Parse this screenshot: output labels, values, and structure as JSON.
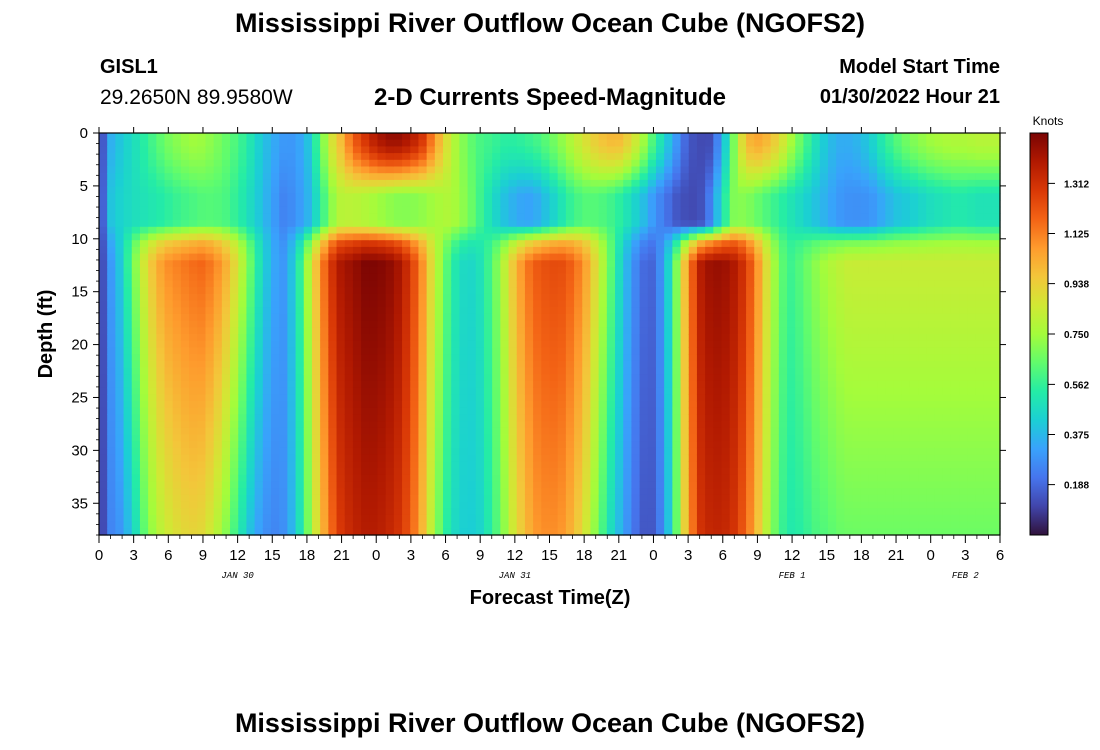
{
  "page": {
    "title_top": "Mississippi River Outflow Ocean Cube (NGOFS2)",
    "title_bottom": "Mississippi River Outflow Ocean Cube (NGOFS2)",
    "station_id": "GISL1",
    "station_coords": "29.2650N  89.9580W",
    "subtitle": "2-D Currents Speed-Magnitude",
    "model_start_label": "Model Start Time",
    "model_start_value": "01/30/2022 Hour 21"
  },
  "chart_data": {
    "type": "heatmap",
    "title": "2-D Currents Speed-Magnitude",
    "xlabel": "Forecast Time(Z)",
    "ylabel": "Depth (ft)",
    "x_unit": "hours since JAN 30 00Z",
    "xlim": [
      0,
      78
    ],
    "ylim": [
      38,
      0
    ],
    "x_tick_labels": [
      "0",
      "3",
      "6",
      "9",
      "12",
      "15",
      "18",
      "21",
      "0",
      "3",
      "6",
      "9",
      "12",
      "15",
      "18",
      "21",
      "0",
      "3",
      "6",
      "9",
      "12",
      "15",
      "18",
      "21",
      "0",
      "3",
      "6"
    ],
    "y_tick_values": [
      0,
      5,
      10,
      15,
      20,
      25,
      30,
      35
    ],
    "y_tick_labels": [
      "0",
      "5",
      "10",
      "15",
      "20",
      "25",
      "30",
      "35"
    ],
    "date_labels": [
      {
        "text": "JAN 30",
        "x": 12
      },
      {
        "text": "JAN 31",
        "x": 36
      },
      {
        "text": "FEB 1",
        "x": 60
      },
      {
        "text": "FEB 2",
        "x": 75
      }
    ],
    "colorbar": {
      "units": "Knots",
      "min": 0,
      "max": 1.5,
      "tick_values": [
        0.188,
        0.375,
        0.562,
        0.75,
        0.938,
        1.125,
        1.312
      ],
      "tick_labels": [
        "0.188",
        "0.375",
        "0.562",
        "0.750",
        "0.938",
        "1.125",
        "1.312"
      ],
      "colors": [
        "#30123b",
        "#4145ab",
        "#4675ed",
        "#39a2fc",
        "#1bcfd4",
        "#24eca6",
        "#61fc6c",
        "#a4fc3b",
        "#d1e834",
        "#f3c63a",
        "#fe9b2d",
        "#f36315",
        "#d93806",
        "#b11901",
        "#7a0403"
      ]
    },
    "surface_layer": {
      "depth_range": [
        0,
        10
      ],
      "times": [
        0,
        1,
        2,
        3,
        4,
        5,
        6,
        7,
        8,
        9,
        10,
        11,
        12,
        13,
        14,
        15,
        16,
        17,
        18,
        19,
        20,
        21,
        22,
        23,
        24,
        25,
        26,
        27,
        28,
        29,
        30,
        31,
        32,
        33,
        34,
        35,
        36,
        37,
        38,
        39,
        40,
        41,
        42,
        43,
        44,
        45,
        46,
        47,
        48,
        49,
        50,
        51,
        52,
        53,
        54,
        55,
        56,
        57,
        58,
        59,
        60,
        61,
        62,
        63,
        64,
        65,
        66,
        67,
        68,
        69,
        70,
        71,
        72,
        73,
        74,
        75,
        76,
        77,
        78
      ],
      "surface_values": [
        0.05,
        0.35,
        0.42,
        0.48,
        0.55,
        0.62,
        0.68,
        0.72,
        0.75,
        0.74,
        0.7,
        0.65,
        0.6,
        0.52,
        0.42,
        0.35,
        0.3,
        0.3,
        0.38,
        0.6,
        0.85,
        1.0,
        1.2,
        1.3,
        1.4,
        1.45,
        1.45,
        1.4,
        1.3,
        1.1,
        0.9,
        0.75,
        0.65,
        0.6,
        0.58,
        0.55,
        0.55,
        0.57,
        0.6,
        0.65,
        0.72,
        0.8,
        0.88,
        0.95,
        1.0,
        1.0,
        0.92,
        0.78,
        0.6,
        0.45,
        0.3,
        0.15,
        0.12,
        0.12,
        0.35,
        0.7,
        1.0,
        1.05,
        1.0,
        0.9,
        0.75,
        0.62,
        0.5,
        0.4,
        0.35,
        0.35,
        0.38,
        0.45,
        0.55,
        0.62,
        0.68,
        0.72,
        0.75,
        0.77,
        0.78,
        0.78,
        0.8,
        0.8,
        0.8
      ],
      "mid_values": [
        0.05,
        0.4,
        0.45,
        0.48,
        0.5,
        0.52,
        0.55,
        0.58,
        0.6,
        0.62,
        0.62,
        0.6,
        0.55,
        0.48,
        0.4,
        0.32,
        0.25,
        0.28,
        0.35,
        0.5,
        0.7,
        0.8,
        0.8,
        0.78,
        0.75,
        0.72,
        0.7,
        0.7,
        0.72,
        0.75,
        0.78,
        0.75,
        0.68,
        0.58,
        0.48,
        0.4,
        0.35,
        0.32,
        0.35,
        0.42,
        0.5,
        0.58,
        0.62,
        0.62,
        0.6,
        0.55,
        0.48,
        0.4,
        0.3,
        0.22,
        0.15,
        0.12,
        0.12,
        0.25,
        0.5,
        0.7,
        0.7,
        0.65,
        0.6,
        0.55,
        0.5,
        0.45,
        0.4,
        0.35,
        0.3,
        0.28,
        0.28,
        0.3,
        0.35,
        0.4,
        0.42,
        0.45,
        0.48,
        0.5,
        0.52,
        0.52,
        0.5,
        0.5,
        0.5
      ]
    },
    "deep_layer": {
      "depth_range": [
        10,
        38
      ],
      "times": [
        0,
        1,
        2,
        3,
        4,
        5,
        6,
        7,
        8,
        9,
        10,
        11,
        12,
        13,
        14,
        15,
        16,
        17,
        18,
        19,
        20,
        21,
        22,
        23,
        24,
        25,
        26,
        27,
        28,
        29,
        30,
        31,
        32,
        33,
        34,
        35,
        36,
        37,
        38,
        39,
        40,
        41,
        42,
        43,
        44,
        45,
        46,
        47,
        48,
        49,
        50,
        51,
        52,
        53,
        54,
        55,
        56,
        57,
        58,
        59,
        60,
        61,
        62,
        63,
        64,
        65,
        66,
        67,
        68,
        69,
        70,
        71,
        72,
        73,
        74,
        75,
        76,
        77,
        78
      ],
      "upper_values": [
        0.05,
        0.3,
        0.45,
        0.7,
        0.9,
        1.05,
        1.12,
        1.15,
        1.18,
        1.2,
        1.15,
        1.05,
        0.9,
        0.7,
        0.5,
        0.35,
        0.3,
        0.45,
        0.75,
        1.05,
        1.3,
        1.42,
        1.45,
        1.5,
        1.5,
        1.48,
        1.42,
        1.3,
        1.1,
        0.85,
        0.65,
        0.5,
        0.45,
        0.5,
        0.62,
        0.8,
        1.0,
        1.15,
        1.22,
        1.25,
        1.25,
        1.2,
        1.1,
        0.92,
        0.72,
        0.5,
        0.32,
        0.2,
        0.18,
        0.35,
        0.7,
        1.1,
        1.38,
        1.45,
        1.45,
        1.4,
        1.3,
        1.1,
        0.85,
        0.65,
        0.58,
        0.65,
        0.72,
        0.78,
        0.82,
        0.85,
        0.85,
        0.85,
        0.85,
        0.85,
        0.85,
        0.85,
        0.85,
        0.85,
        0.85,
        0.85,
        0.85,
        0.85,
        0.85
      ],
      "lower_values": [
        0.05,
        0.25,
        0.3,
        0.45,
        0.65,
        0.78,
        0.85,
        0.9,
        0.92,
        0.9,
        0.82,
        0.7,
        0.55,
        0.4,
        0.3,
        0.25,
        0.28,
        0.4,
        0.65,
        0.92,
        1.15,
        1.3,
        1.35,
        1.38,
        1.38,
        1.35,
        1.3,
        1.2,
        1.0,
        0.75,
        0.55,
        0.45,
        0.42,
        0.45,
        0.55,
        0.7,
        0.88,
        1.0,
        1.08,
        1.1,
        1.08,
        1.0,
        0.88,
        0.7,
        0.52,
        0.38,
        0.25,
        0.15,
        0.15,
        0.3,
        0.65,
        1.05,
        1.3,
        1.35,
        1.35,
        1.3,
        1.18,
        0.98,
        0.75,
        0.58,
        0.52,
        0.55,
        0.6,
        0.62,
        0.65,
        0.66,
        0.66,
        0.66,
        0.66,
        0.66,
        0.66,
        0.66,
        0.66,
        0.66,
        0.66,
        0.66,
        0.66,
        0.66,
        0.66
      ]
    }
  }
}
